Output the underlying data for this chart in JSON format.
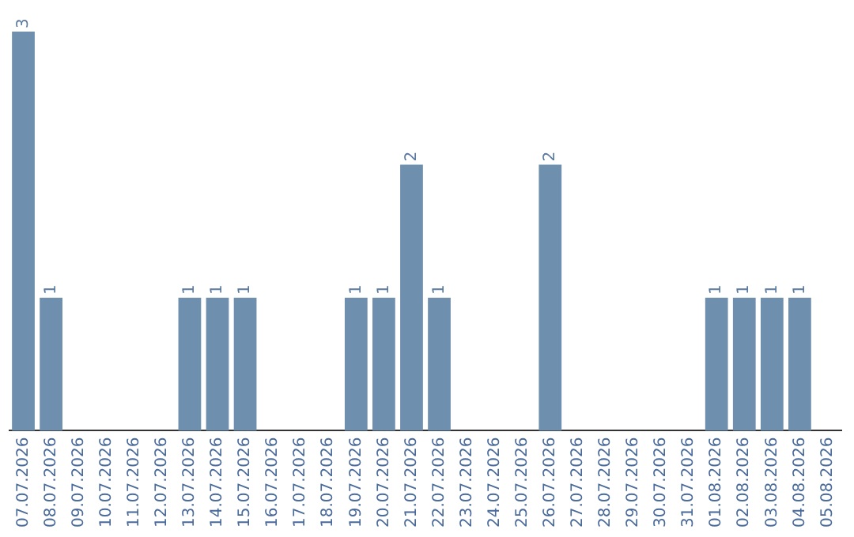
{
  "chart_data": {
    "type": "bar",
    "categories": [
      "07.07.2026",
      "08.07.2026",
      "09.07.2026",
      "10.07.2026",
      "11.07.2026",
      "12.07.2026",
      "13.07.2026",
      "14.07.2026",
      "15.07.2026",
      "16.07.2026",
      "17.07.2026",
      "18.07.2026",
      "19.07.2026",
      "20.07.2026",
      "21.07.2026",
      "22.07.2026",
      "23.07.2026",
      "24.07.2026",
      "25.07.2026",
      "26.07.2026",
      "27.07.2026",
      "28.07.2026",
      "29.07.2026",
      "30.07.2026",
      "31.07.2026",
      "01.08.2026",
      "02.08.2026",
      "03.08.2026",
      "04.08.2026",
      "05.08.2026"
    ],
    "values": [
      3,
      1,
      0,
      0,
      0,
      0,
      1,
      1,
      1,
      0,
      0,
      0,
      1,
      1,
      2,
      1,
      0,
      0,
      0,
      2,
      0,
      0,
      0,
      0,
      0,
      1,
      1,
      1,
      1,
      0
    ],
    "value_labels": [
      "3",
      "1",
      null,
      null,
      null,
      null,
      "1",
      "1",
      "1",
      null,
      null,
      null,
      "1",
      "1",
      "2",
      "1",
      null,
      null,
      null,
      "2",
      null,
      null,
      null,
      null,
      null,
      "1",
      "1",
      "1",
      "1",
      null
    ],
    "color": "#6f8fae",
    "grid": false,
    "legend": false,
    "tick_labels": "x"
  }
}
